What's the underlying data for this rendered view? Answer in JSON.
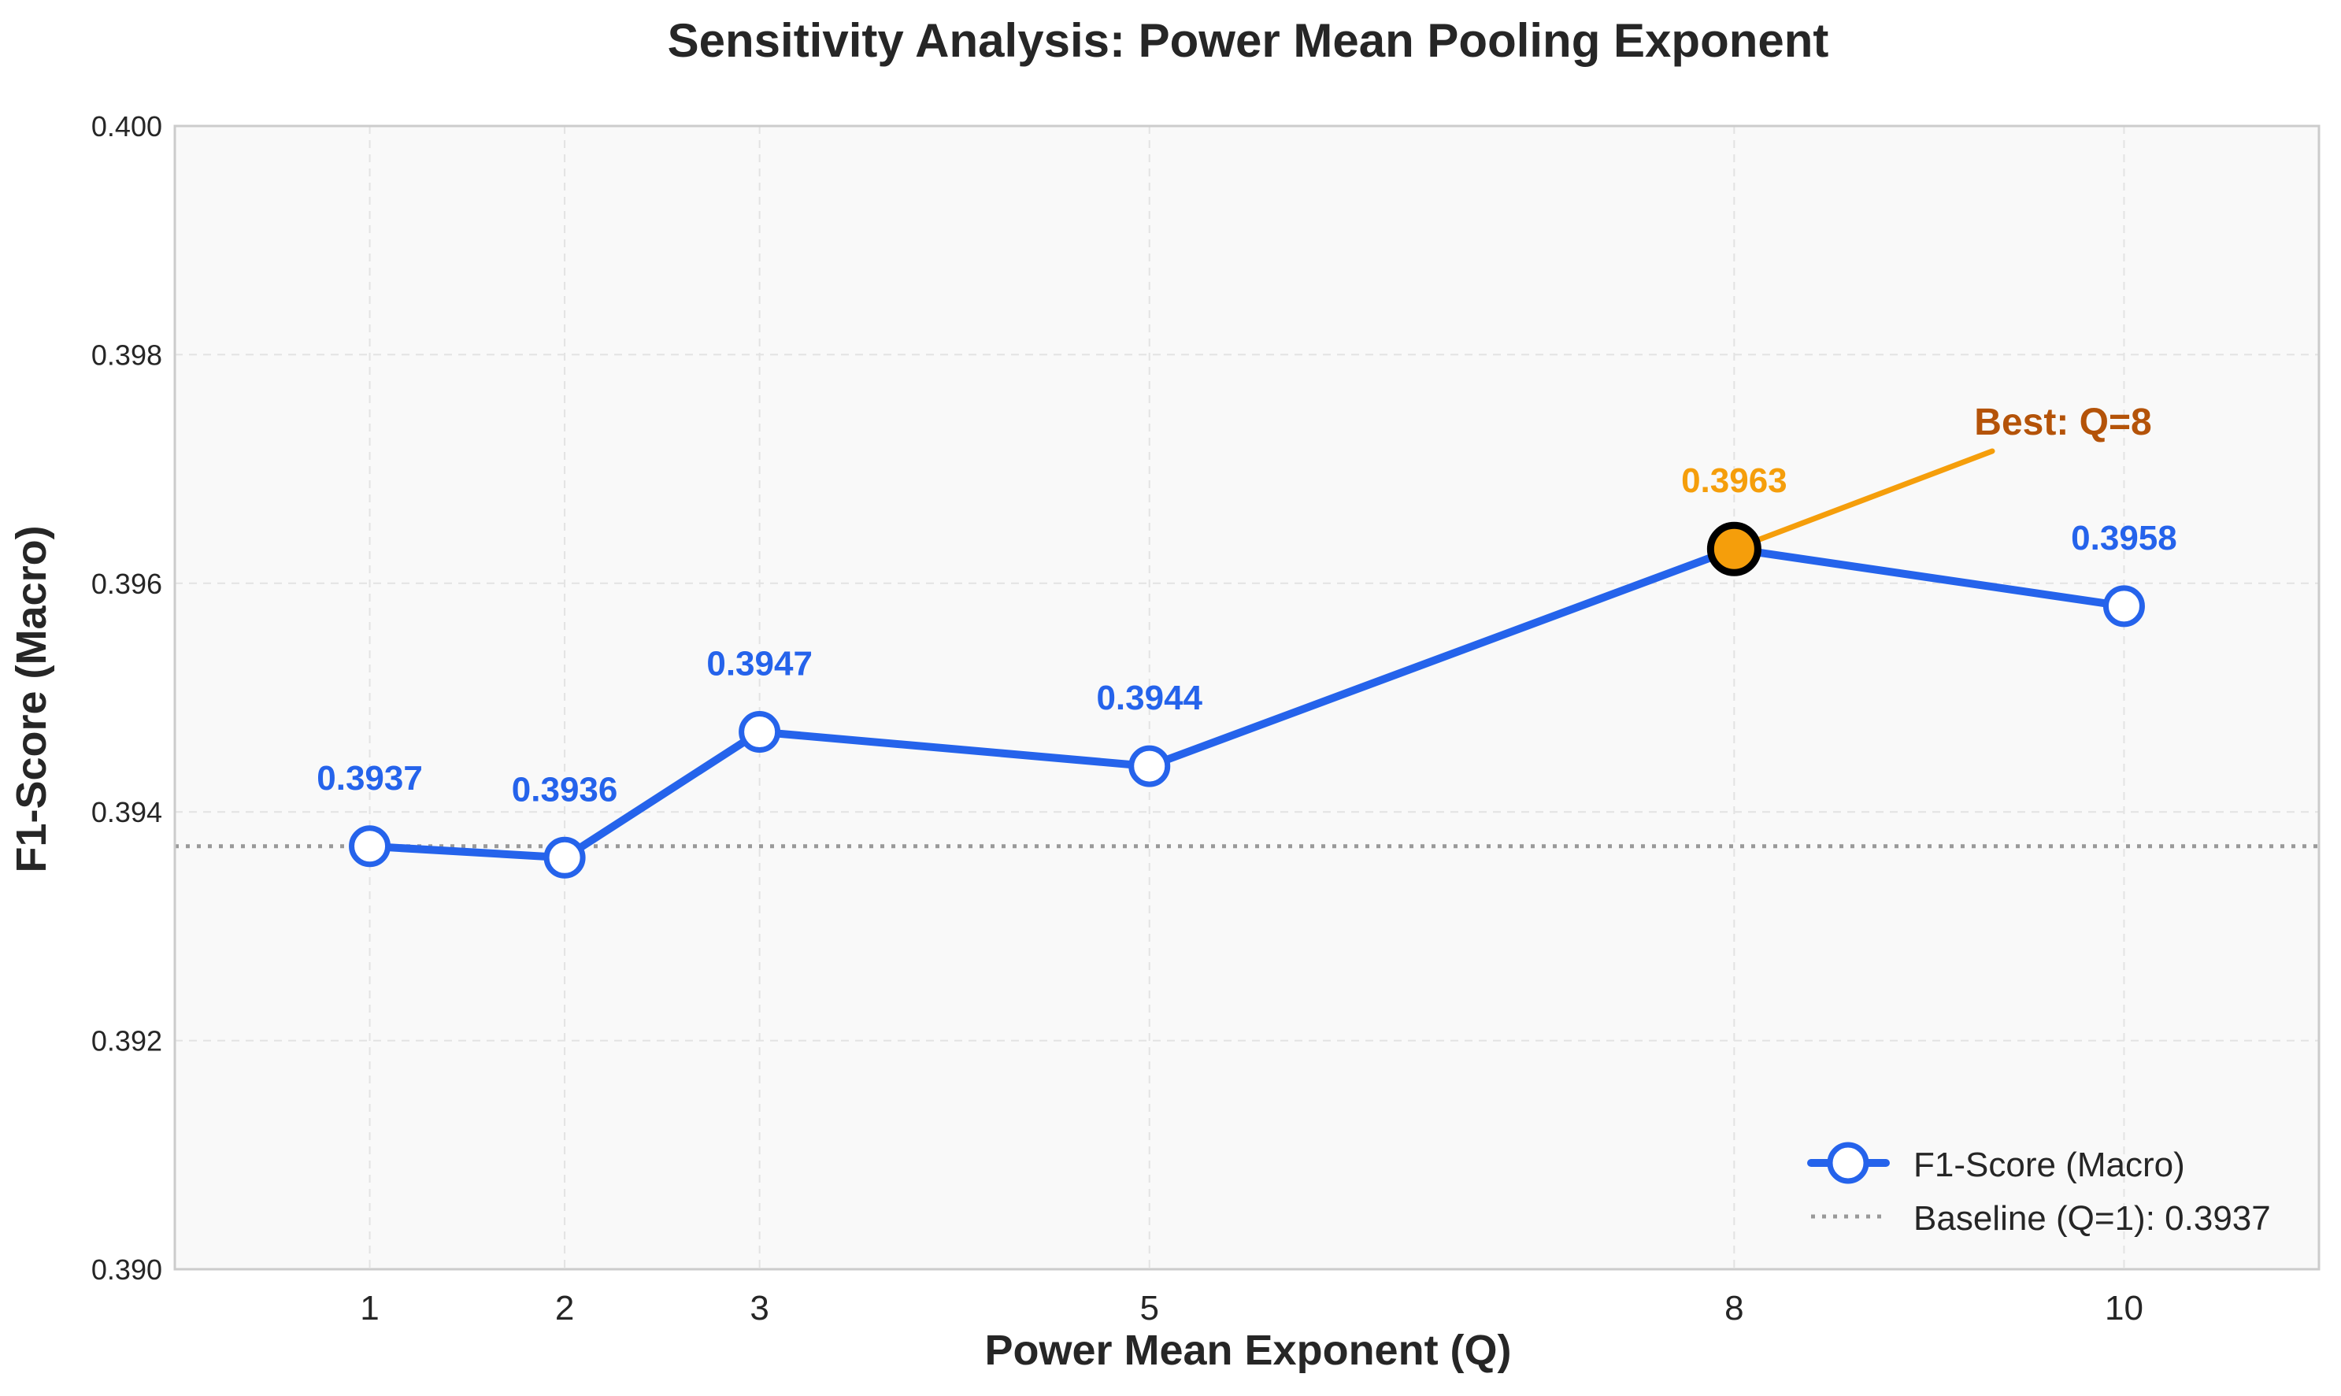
{
  "chart_data": {
    "type": "line",
    "title": "Sensitivity Analysis: Power Mean Pooling Exponent",
    "xlabel": "Power Mean Exponent (Q)",
    "ylabel": "F1-Score (Macro)",
    "x": [
      1,
      2,
      3,
      5,
      8,
      10
    ],
    "xlim": [
      0,
      11
    ],
    "ylim": [
      0.39,
      0.4
    ],
    "xticks": [
      "1",
      "2",
      "3",
      "5",
      "8",
      "10"
    ],
    "yticks": [
      "0.390",
      "0.392",
      "0.394",
      "0.396",
      "0.398",
      "0.400"
    ],
    "grid": true,
    "legend_position": "lower-right",
    "series": [
      {
        "name": "F1-Score (Macro)",
        "values": [
          0.3937,
          0.3936,
          0.3947,
          0.3944,
          0.3963,
          0.3958
        ],
        "labels": [
          "0.3937",
          "0.3936",
          "0.3947",
          "0.3944",
          "0.3963",
          "0.3958"
        ],
        "color": "#2563eb"
      }
    ],
    "baseline": {
      "name": "Baseline (Q=1): 0.3937",
      "value": 0.3937,
      "color": "#999999"
    },
    "annotation": {
      "text": "Best: Q=8",
      "x": 8,
      "y": 0.3963,
      "highlight_color": "#f59e0b",
      "text_color": "#b45309"
    }
  }
}
